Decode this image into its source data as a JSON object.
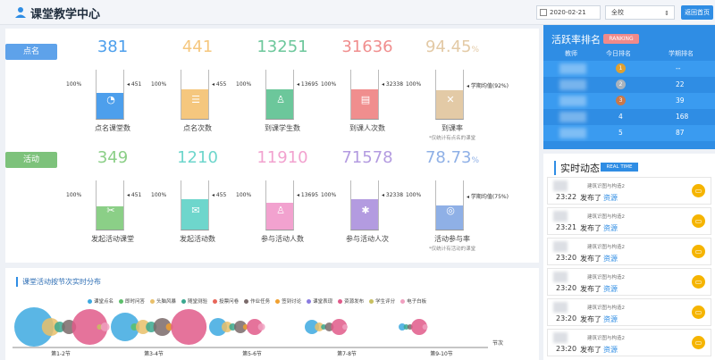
{
  "header": {
    "title": "课堂教学中心",
    "date": "2020-02-21",
    "scope": "全校",
    "back_label": "返回首页"
  },
  "sections": {
    "attendance_tag": "点名",
    "activity_tag": "活动"
  },
  "attendance_metrics": [
    {
      "value": "381",
      "unit": "",
      "left_label": "100%",
      "right_label": "451",
      "caption": "点名课堂数",
      "note": "",
      "color": "#4d9fec",
      "fill": 0.84,
      "icon": "pie-chart-icon"
    },
    {
      "value": "441",
      "unit": "",
      "left_label": "100%",
      "right_label": "455",
      "caption": "点名次数",
      "note": "",
      "color": "#f5c77e",
      "fill": 0.97,
      "icon": "list-icon"
    },
    {
      "value": "13251",
      "unit": "",
      "left_label": "100%",
      "right_label": "13695",
      "caption": "到课学生数",
      "note": "",
      "color": "#6cc79b",
      "fill": 0.97,
      "icon": "user-icon"
    },
    {
      "value": "31636",
      "unit": "",
      "left_label": "100%",
      "right_label": "32338",
      "caption": "到课人次数",
      "note": "",
      "color": "#f08e8e",
      "fill": 0.98,
      "icon": "id-card-icon"
    },
    {
      "value": "94.45",
      "unit": "%",
      "left_label": "100%",
      "right_label": "学期均值(92%)",
      "caption": "到课率",
      "note": "*仅统计有点名的课堂",
      "color": "#e3caa6",
      "fill": 0.94,
      "icon": "cross-icon"
    }
  ],
  "activity_metrics": [
    {
      "value": "349",
      "unit": "",
      "left_label": "100%",
      "right_label": "451",
      "caption": "发起活动课堂",
      "note": "",
      "color": "#8bcf87",
      "fill": 0.77,
      "icon": "tools-icon"
    },
    {
      "value": "1210",
      "unit": "",
      "left_label": "100%",
      "right_label": "455",
      "caption": "发起活动数",
      "note": "",
      "color": "#6ed6cc",
      "fill": 1.0,
      "icon": "chat-icon"
    },
    {
      "value": "11910",
      "unit": "",
      "left_label": "100%",
      "right_label": "13695",
      "caption": "参与活动人数",
      "note": "",
      "color": "#f2a2cf",
      "fill": 0.87,
      "icon": "user-icon"
    },
    {
      "value": "71578",
      "unit": "",
      "left_label": "100%",
      "right_label": "32338",
      "caption": "参与活动人次",
      "note": "",
      "color": "#b39be0",
      "fill": 1.0,
      "icon": "asterisk-icon"
    },
    {
      "value": "78.73",
      "unit": "%",
      "left_label": "100%",
      "right_label": "学期均值(75%)",
      "caption": "活动参与率",
      "note": "*仅统计有活动的课堂",
      "color": "#8fb0e6",
      "fill": 0.79,
      "icon": "ring-icon"
    }
  ],
  "distribution": {
    "title": "课堂活动按节次实时分布",
    "legend": [
      {
        "name": "课堂点名",
        "color": "#3da9e0"
      },
      {
        "name": "即时问答",
        "color": "#5bbf6a"
      },
      {
        "name": "头脑风暴",
        "color": "#e9c06a"
      },
      {
        "name": "随堂测验",
        "color": "#3aa88f"
      },
      {
        "name": "投票问卷",
        "color": "#e8665a"
      },
      {
        "name": "作业任务",
        "color": "#7a6a6a"
      },
      {
        "name": "签到讨论",
        "color": "#f0a030"
      },
      {
        "name": "课堂表现",
        "color": "#8a7be0"
      },
      {
        "name": "资源发布",
        "color": "#e05a8a"
      },
      {
        "name": "学生评分",
        "color": "#c8c060"
      },
      {
        "name": "电子白板",
        "color": "#f0a0c0"
      }
    ],
    "axis_unit": "节次",
    "periods": [
      "第1-2节",
      "第3-4节",
      "第5-6节",
      "第7-8节",
      "第9-10节"
    ]
  },
  "ranking": {
    "title": "活跃率排名",
    "badge": "RANKING",
    "columns": [
      "教师",
      "今日排名",
      "学期排名"
    ],
    "rows": [
      {
        "today": "1",
        "term": "--"
      },
      {
        "today": "2",
        "term": "22"
      },
      {
        "today": "3",
        "term": "39"
      },
      {
        "today": "4",
        "term": "168"
      },
      {
        "today": "5",
        "term": "87"
      }
    ]
  },
  "feed": {
    "title": "实时动态",
    "badge": "REAL TIME",
    "items": [
      {
        "source": "建筑识图与构造2",
        "time": "23:22",
        "action": "发布了",
        "resource": "资源"
      },
      {
        "source": "建筑识图与构造2",
        "time": "23:21",
        "action": "发布了",
        "resource": "资源"
      },
      {
        "source": "建筑识图与构造2",
        "time": "23:20",
        "action": "发布了",
        "resource": "资源"
      },
      {
        "source": "建筑识图与构造2",
        "time": "23:20",
        "action": "发布了",
        "resource": "资源"
      },
      {
        "source": "建筑识图与构造2",
        "time": "23:20",
        "action": "发布了",
        "resource": "资源"
      },
      {
        "source": "建筑识图与构造2",
        "time": "23:20",
        "action": "发布了",
        "resource": "资源"
      }
    ]
  }
}
